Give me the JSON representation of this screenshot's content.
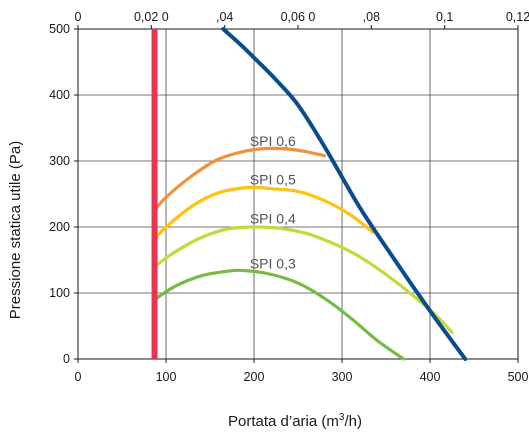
{
  "chart_data": {
    "type": "line",
    "xlabel_prefix": "Portata d’aria (m",
    "xlabel_sup": "3",
    "xlabel_suffix": "/h)",
    "ylabel": "Pressione statica utile (Pa)",
    "xlim": [
      0,
      500
    ],
    "ylim": [
      0,
      500
    ],
    "x_ticks": [
      "0",
      "100",
      "200",
      "300",
      "400",
      "500"
    ],
    "y_ticks": [
      "0",
      "100",
      "200",
      "300",
      "400",
      "500"
    ],
    "top_ticks": [
      "0",
      "0,02 0",
      ",04",
      "0,06 0",
      ",08",
      "0,1",
      "0,12"
    ],
    "grid": true,
    "vertical_marker": {
      "x": 87,
      "color": "#e8344e"
    },
    "series": [
      {
        "name": "SPI 0,6",
        "color": "#f0923a",
        "x": [
          87,
          100,
          130,
          160,
          190,
          215,
          240,
          260,
          280
        ],
        "y": [
          225,
          245,
          278,
          303,
          315,
          319,
          318,
          314,
          308
        ]
      },
      {
        "name": "SPI 0,5",
        "color": "#ffc20e",
        "x": [
          87,
          100,
          130,
          160,
          195,
          220,
          250,
          280,
          310,
          335
        ],
        "y": [
          182,
          200,
          232,
          252,
          260,
          258,
          254,
          240,
          218,
          192
        ]
      },
      {
        "name": "SPI 0,4",
        "color": "#c5d93a",
        "x": [
          87,
          110,
          140,
          170,
          200,
          230,
          260,
          290,
          320,
          350,
          380,
          410,
          425
        ],
        "y": [
          140,
          162,
          184,
          197,
          200,
          198,
          190,
          175,
          155,
          128,
          97,
          62,
          40
        ]
      },
      {
        "name": "SPI 0,3",
        "color": "#75bb46",
        "x": [
          87,
          110,
          140,
          170,
          190,
          220,
          250,
          280,
          310,
          340,
          370
        ],
        "y": [
          90,
          110,
          126,
          133,
          134,
          128,
          115,
          92,
          62,
          28,
          0
        ]
      },
      {
        "name": "",
        "color": "#0c4c8d",
        "x": [
          165,
          185,
          205,
          225,
          250,
          280,
          320,
          360,
          400,
          440
        ],
        "y": [
          500,
          476,
          450,
          423,
          385,
          322,
          230,
          150,
          73,
          0
        ]
      }
    ],
    "labels": [
      {
        "text": "SPI 0,6",
        "x": 160,
        "y": 330
      },
      {
        "text": "SPI 0,5",
        "x": 160,
        "y": 272
      },
      {
        "text": "SPI 0,4",
        "x": 160,
        "y": 213
      },
      {
        "text": "SPI 0,3",
        "x": 160,
        "y": 145
      }
    ]
  }
}
